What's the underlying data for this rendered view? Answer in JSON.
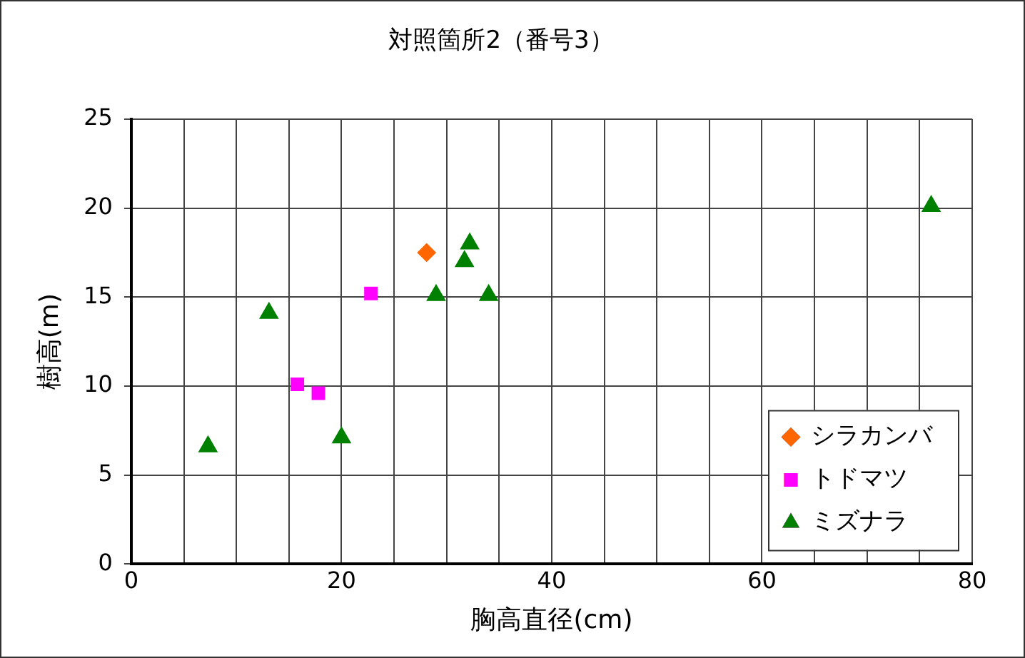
{
  "chart_data": {
    "type": "scatter",
    "title": "対照箇所2（番号3）",
    "xlabel": "胸高直径(cm)",
    "ylabel": "樹高(m)",
    "xlim": [
      0,
      80
    ],
    "xticks": [
      0,
      {
        "value": 5,
        "label": null
      },
      {
        "value": 10,
        "label": null
      },
      {
        "value": 15,
        "label": null
      },
      20,
      {
        "value": 25,
        "label": null
      },
      {
        "value": 30,
        "label": null
      },
      {
        "value": 35,
        "label": null
      },
      40,
      {
        "value": 45,
        "label": null
      },
      {
        "value": 50,
        "label": null
      },
      {
        "value": 55,
        "label": null
      },
      60,
      {
        "value": 65,
        "label": null
      },
      {
        "value": 70,
        "label": null
      },
      {
        "value": 75,
        "label": null
      },
      80
    ],
    "ylim": [
      0,
      25
    ],
    "yticks": [
      0,
      5,
      10,
      15,
      20,
      25
    ],
    "grid": true,
    "legend": "bottom right",
    "series": [
      {
        "name": "シラカンバ",
        "color": "#ff6600",
        "marker": "diamond",
        "x": [
          28.1
        ],
        "values": [
          17.5
        ]
      },
      {
        "name": "トドマツ",
        "color": "#ff00ff",
        "marker": "square",
        "x": [
          22.8,
          15.8,
          17.8
        ],
        "values": [
          15.2,
          10.1,
          9.6
        ]
      },
      {
        "name": "ミズナラ",
        "color": "#008000",
        "marker": "triangle",
        "x": [
          7.3,
          13.1,
          20,
          29,
          31.7,
          32.2,
          34,
          76.1
        ],
        "values": [
          6.6,
          14.1,
          7.1,
          15.1,
          17,
          18,
          15.1,
          20.1
        ]
      }
    ]
  }
}
